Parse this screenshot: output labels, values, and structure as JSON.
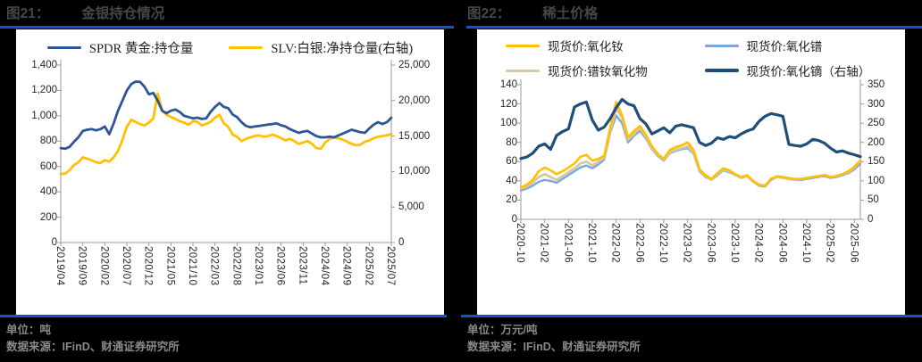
{
  "page": {
    "background": "#000000",
    "accent_rule_color": "#1353cc"
  },
  "figures": [
    {
      "title_tag": "图21：",
      "title": "金银持仓情况",
      "unit_label": "单位：吨",
      "source_label": "数据来源：IFinD、财通证券研究所",
      "chart_data": {
        "type": "line",
        "title": "金银持仓情况",
        "grid": false,
        "legend_position": "top",
        "points_per_series": 76,
        "x_tick_every": 5,
        "x_tick_labels": [
          "2019/04",
          "2019/09",
          "2020/02",
          "2020/07",
          "2020/12",
          "2021/05",
          "2021/10",
          "2022/03",
          "2022/08",
          "2023/01",
          "2023/06",
          "2023/11",
          "2024/04",
          "2024/09",
          "2025/02",
          "2025/07"
        ],
        "left_axis": {
          "min": 0,
          "max": 1400,
          "tick_labels": [
            "0",
            "200",
            "400",
            "600",
            "800",
            "1,000",
            "1,200",
            "1,400"
          ]
        },
        "right_axis": {
          "min": 0,
          "max": 25000,
          "tick_labels": [
            "0",
            "5,000",
            "10,000",
            "15,000",
            "20,000",
            "25,000"
          ]
        },
        "series": [
          {
            "name": "SPDR 黄金:持仓量",
            "axis": "left",
            "color": "#2E5596",
            "line_width": 2.8,
            "z": 2,
            "values": [
              745,
              740,
              755,
              795,
              830,
              880,
              890,
              895,
              885,
              895,
              915,
              855,
              940,
              1040,
              1120,
              1200,
              1250,
              1270,
              1268,
              1230,
              1170,
              1180,
              1120,
              1040,
              1020,
              1040,
              1050,
              1030,
              1000,
              990,
              980,
              985,
              975,
              980,
              1030,
              1070,
              1100,
              1070,
              1060,
              1010,
              990,
              950,
              920,
              910,
              915,
              920,
              925,
              930,
              935,
              940,
              925,
              915,
              895,
              880,
              865,
              875,
              880,
              860,
              840,
              830,
              830,
              835,
              830,
              845,
              860,
              875,
              890,
              880,
              870,
              865,
              900,
              930,
              950,
              935,
              950,
              985
            ]
          },
          {
            "name": "SLV:白银:净持仓量(右轴)",
            "axis": "right",
            "color": "#FFC000",
            "line_width": 2.8,
            "z": 1,
            "values": [
              9650,
              9700,
              10200,
              10900,
              11300,
              12000,
              11800,
              11600,
              11300,
              11200,
              11600,
              11400,
              12000,
              12900,
              14500,
              16300,
              17300,
              17000,
              16700,
              16500,
              16900,
              17500,
              21000,
              18600,
              18000,
              17700,
              17400,
              17100,
              16900,
              16600,
              17100,
              17000,
              16500,
              16700,
              17000,
              17600,
              18000,
              16800,
              16300,
              15200,
              14900,
              14300,
              14600,
              14800,
              15000,
              15100,
              14900,
              15000,
              15200,
              15000,
              14700,
              14400,
              14600,
              14300,
              13900,
              14100,
              14300,
              13900,
              13300,
              13200,
              14100,
              14600,
              14800,
              14700,
              14500,
              14200,
              13900,
              13700,
              13800,
              14200,
              14400,
              14700,
              14900,
              15000,
              15100,
              15300
            ]
          }
        ]
      }
    },
    {
      "title_tag": "图22：",
      "title": "稀土价格",
      "unit_label": "单位：万元/吨",
      "source_label": "数据来源：IFinD、财通证券研究所",
      "chart_data": {
        "type": "line",
        "title": "稀土价格",
        "grid": false,
        "legend_position": "top",
        "points_per_series": 58,
        "x_tick_every": 4,
        "x_tick_labels": [
          "2020-10",
          "2021-02",
          "2021-06",
          "2021-10",
          "2022-02",
          "2022-06",
          "2022-10",
          "2023-02",
          "2023-06",
          "2023-10",
          "2024-02",
          "2024-06",
          "2024-10",
          "2025-02",
          "2025-06"
        ],
        "left_axis": {
          "min": 0,
          "max": 140,
          "tick_labels": [
            "0",
            "20",
            "40",
            "60",
            "80",
            "100",
            "120",
            "140"
          ]
        },
        "right_axis": {
          "min": 0,
          "max": 350,
          "tick_labels": [
            "0",
            "50",
            "100",
            "150",
            "200",
            "250",
            "300",
            "350"
          ]
        },
        "series": [
          {
            "name": "现货价:氧化钕",
            "axis": "left",
            "color": "#FFC000",
            "line_width": 2.6,
            "z": 3,
            "values": [
              33,
              36,
              41,
              50,
              54,
              51,
              47,
              50,
              54,
              58,
              65,
              67,
              61,
              63,
              66,
              95,
              122,
              108,
              85,
              92,
              97,
              88,
              76,
              68,
              63,
              72,
              75,
              77,
              80,
              72,
              52,
              46,
              42,
              48,
              53,
              51,
              47,
              44,
              46,
              40,
              36,
              35,
              42,
              45,
              44,
              43,
              42,
              42,
              43,
              44,
              45,
              46,
              44,
              45,
              47,
              50,
              55,
              61
            ]
          },
          {
            "name": "现货价:氧化镨",
            "axis": "left",
            "color": "#7CA6DC",
            "line_width": 2.4,
            "z": 1,
            "values": [
              30,
              32,
              35,
              39,
              41,
              40,
              38,
              42,
              46,
              50,
              54,
              56,
              53,
              57,
              62,
              90,
              108,
              100,
              80,
              87,
              92,
              84,
              73,
              66,
              61,
              69,
              71,
              73,
              74,
              68,
              50,
              44,
              41,
              46,
              51,
              49,
              46,
              43,
              45,
              39,
              35,
              34,
              41,
              44,
              43,
              42,
              41,
              41,
              42,
              43,
              44,
              45,
              43,
              44,
              46,
              48,
              52,
              58
            ]
          },
          {
            "name": "现货价:镨钕氧化物",
            "axis": "left",
            "color": "#D5C8A9",
            "line_width": 2.8,
            "z": 2,
            "values": [
              32,
              34,
              38,
              44,
              47,
              44,
              41,
              45,
              49,
              53,
              58,
              60,
              56,
              60,
              64,
              92,
              115,
              106,
              83,
              89,
              95,
              86,
              74,
              67,
              62,
              70,
              72,
              74,
              76,
              69,
              51,
              45,
              41,
              47,
              52,
              50,
              46,
              43,
              45,
              39,
              36,
              35,
              42,
              44,
              43,
              42,
              41,
              42,
              43,
              44,
              45,
              46,
              44,
              45,
              47,
              49,
              54,
              61
            ]
          },
          {
            "name": "现货价:氧化镝（右轴）",
            "axis": "right",
            "color": "#1F4E79",
            "line_width": 3.2,
            "z": 4,
            "values": [
              158,
              162,
              172,
              190,
              196,
              182,
              218,
              228,
              235,
              292,
              300,
              305,
              258,
              232,
              240,
              262,
              290,
              312,
              300,
              295,
              262,
              248,
              222,
              230,
              238,
              225,
              242,
              246,
              242,
              238,
              200,
              192,
              198,
              212,
              208,
              215,
              212,
              222,
              230,
              235,
              255,
              268,
              275,
              272,
              268,
              195,
              192,
              190,
              196,
              208,
              205,
              198,
              185,
              175,
              178,
              172,
              168,
              163
            ]
          }
        ]
      }
    }
  ]
}
